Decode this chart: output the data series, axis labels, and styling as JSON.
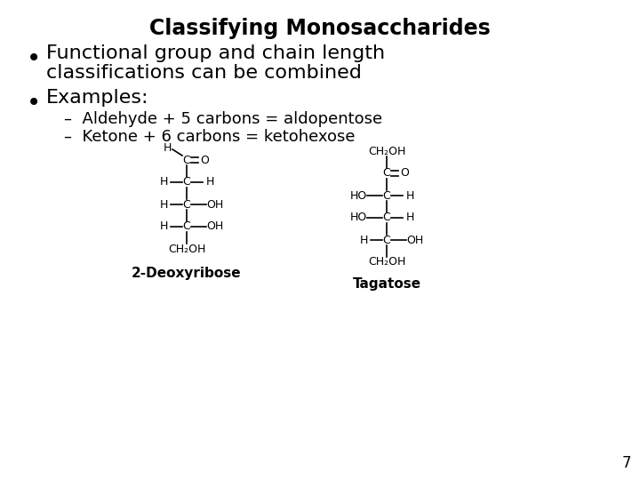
{
  "title": "Classifying Monosaccharides",
  "bullet1_line1": "Functional group and chain length",
  "bullet1_line2": "classifications can be combined",
  "bullet2": "Examples:",
  "sub1": "–  Aldehyde + 5 carbons = aldopentose",
  "sub2": "–  Ketone + 6 carbons = ketohexose",
  "label1": "2-Deoxyribose",
  "label2": "Tagatose",
  "page_number": "7",
  "bg_color": "#ffffff",
  "text_color": "#000000",
  "title_fontsize": 17,
  "bullet_fontsize": 16,
  "sub_fontsize": 13,
  "label_fontsize": 11,
  "struct_fontsize": 9
}
